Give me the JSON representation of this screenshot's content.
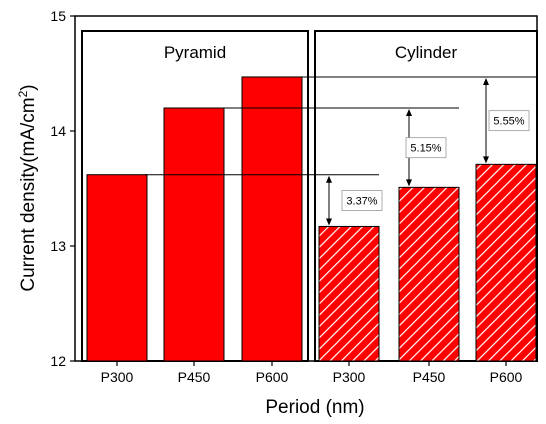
{
  "chart_data": {
    "type": "bar",
    "xlabel": "Period (nm)",
    "ylabel_main": "Current density(mA/cm",
    "ylabel_sup": "2",
    "ylabel_close": ")",
    "ylim": [
      12,
      15
    ],
    "yticks": [
      "12",
      "13",
      "14",
      "15"
    ],
    "categories": [
      "P300",
      "P450",
      "P600",
      "P300",
      "P450",
      "P600"
    ],
    "groups": [
      {
        "label": "Pyramid",
        "style": "solid",
        "values": [
          13.62,
          14.2,
          14.47
        ]
      },
      {
        "label": "Cylinder",
        "style": "hatched",
        "values": [
          13.17,
          13.51,
          13.71
        ]
      }
    ],
    "annotations": [
      "3.37%",
      "5.15%",
      "5.55%"
    ],
    "bar_color": "#ff0000",
    "grid": false
  }
}
